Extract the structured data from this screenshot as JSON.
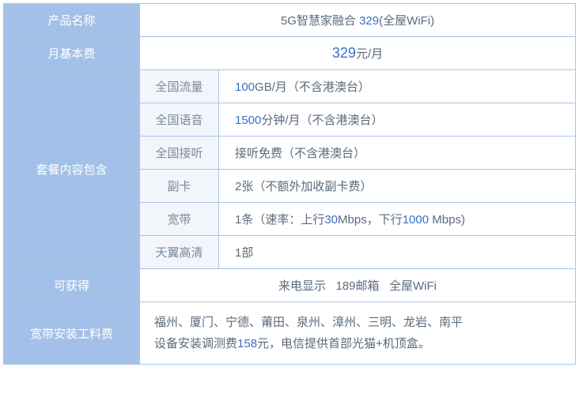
{
  "colors": {
    "header_bg": "#a3c1e8",
    "header_text": "#ffffff",
    "sub_bg": "#f2f6fb",
    "sub_text": "#7a8a9a",
    "border": "#a8c4e8",
    "body_text": "#5a6a7a",
    "accent": "#3b6fc9"
  },
  "rows": {
    "product_name": {
      "label": "产品名称",
      "prefix": "5G智慧家融合 ",
      "num": "329",
      "suffix": "(全屋WiFi)"
    },
    "monthly_fee": {
      "label": "月基本费",
      "num": "329",
      "suffix": "元/月"
    },
    "package": {
      "label": "套餐内容包含",
      "items": [
        {
          "sub": "全国流量",
          "num": "100",
          "unit": "GB/月",
          "note": "（不含港澳台）"
        },
        {
          "sub": "全国语音",
          "num": "1500",
          "unit": "分钟/月",
          "note": "（不含港澳台）"
        },
        {
          "sub": "全国接听",
          "text": "接听免费（不含港澳台）"
        },
        {
          "sub": "副卡",
          "text": "2张（不额外加收副卡费）"
        },
        {
          "sub": "宽带",
          "pre": "1条（速率：上行",
          "n1": "30",
          "mid": "Mbps，下行",
          "n2": "1000",
          "post": " Mbps)"
        },
        {
          "sub": "天翼高清",
          "text": "1部"
        }
      ]
    },
    "obtain": {
      "label": "可获得",
      "text": "来电显示   189邮箱   全屋WiFi"
    },
    "install": {
      "label": "宽带安装工料费",
      "line1": "福州、厦门、宁德、莆田、泉州、漳州、三明、龙岩、南平",
      "line2a": "设备安装调测费",
      "line2num": "158",
      "line2b": "元，电信提供首部光猫+机顶盒。"
    }
  }
}
